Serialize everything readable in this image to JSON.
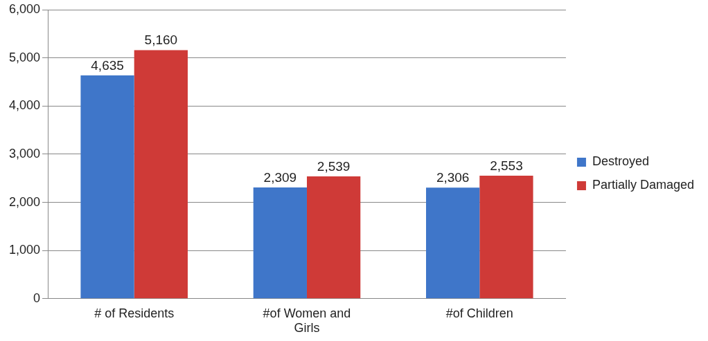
{
  "chart_data": {
    "type": "bar",
    "categories": [
      "# of Residents",
      "#of Women and Girls",
      "#of Children"
    ],
    "series": [
      {
        "name": "Destroyed",
        "color": "#3f76c9",
        "values": [
          4635,
          2309,
          2306
        ],
        "value_labels": [
          "4,635",
          "2,309",
          "2,306"
        ]
      },
      {
        "name": "Partially Damaged",
        "color": "#cf3a37",
        "values": [
          5160,
          2539,
          2553
        ],
        "value_labels": [
          "5,160",
          "2,539",
          "2,553"
        ]
      }
    ],
    "ylim": [
      0,
      6000
    ],
    "yticks": [
      {
        "value": 0,
        "label": "0"
      },
      {
        "value": 1000,
        "label": "1,000"
      },
      {
        "value": 2000,
        "label": "2,000"
      },
      {
        "value": 3000,
        "label": "3,000"
      },
      {
        "value": 4000,
        "label": "4,000"
      },
      {
        "value": 5000,
        "label": "5,000"
      },
      {
        "value": 6000,
        "label": "6,000"
      }
    ],
    "grid": "y",
    "legend": "right"
  }
}
